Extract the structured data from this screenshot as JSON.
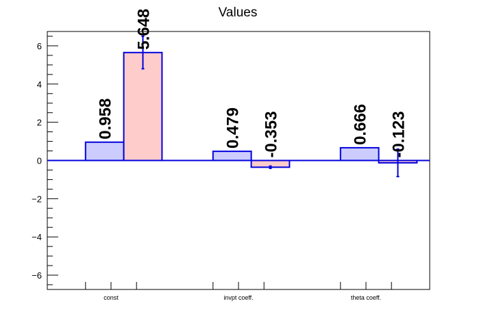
{
  "chart_data": {
    "type": "bar",
    "title": "Values",
    "xlabel": "",
    "ylabel": "",
    "ylim": [
      -6.75,
      6.75
    ],
    "yticks": [
      -6,
      -4,
      -2,
      0,
      2,
      4,
      6
    ],
    "categories": [
      "const",
      "invpt coeff.",
      "theta coeff."
    ],
    "series": [
      {
        "values": [
          0.958,
          0.479,
          0.666
        ],
        "labels": [
          "0.958",
          "0.479",
          "0.666"
        ],
        "errors": [
          0,
          0,
          0
        ],
        "fill": "#ccccff",
        "stroke": "#0000dd"
      },
      {
        "values": [
          5.648,
          -0.353,
          -0.123
        ],
        "labels": [
          "5.648",
          "-0.353",
          "-0.123"
        ],
        "errors": [
          0.85,
          0.06,
          0.72
        ],
        "fill": "#ffcccc",
        "stroke": "#0000dd"
      }
    ],
    "grid": false,
    "legend": "none",
    "colors": {
      "axis": "#000000",
      "baseline": "#0000dd",
      "errorbar": "#0000dd"
    }
  }
}
